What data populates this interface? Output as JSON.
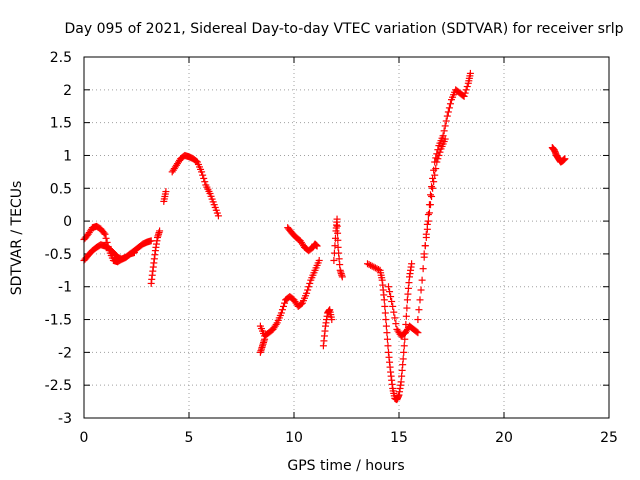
{
  "chart_data": {
    "type": "scatter",
    "title": "Day 095 of 2021, Sidereal Day-to-day VTEC variation (SDTVAR) for receiver srlp",
    "xlabel": "GPS time / hours",
    "ylabel": "SDTVAR / TECUs",
    "xlim": [
      0,
      25
    ],
    "ylim": [
      -3,
      2.5
    ],
    "xticks": [
      0,
      5,
      10,
      15,
      20,
      25
    ],
    "xtick_labels": [
      "0",
      "5",
      "10",
      "15",
      "20",
      "25"
    ],
    "yticks": [
      -3,
      -2.5,
      -2,
      -1.5,
      -1,
      -0.5,
      0,
      0.5,
      1,
      1.5,
      2,
      2.5
    ],
    "ytick_labels": [
      "-3",
      "-2.5",
      "-2",
      "-1.5",
      "-1",
      "-0.5",
      "0",
      "0.5",
      "1",
      "1.5",
      "2",
      "2.5"
    ],
    "grid": true,
    "marker": "+",
    "color": "#ff0000",
    "segments": [
      {
        "x": [
          0.0,
          0.2,
          0.4,
          0.6,
          0.8,
          1.0,
          1.2,
          1.4,
          1.6,
          1.8,
          2.0,
          2.2,
          2.4,
          2.6,
          2.8,
          3.0,
          3.2
        ],
        "y": [
          -0.28,
          -0.2,
          -0.1,
          -0.08,
          -0.12,
          -0.2,
          -0.45,
          -0.6,
          -0.62,
          -0.58,
          -0.55,
          -0.5,
          -0.45,
          -0.4,
          -0.35,
          -0.32,
          -0.3
        ]
      },
      {
        "x": [
          0.0,
          0.2,
          0.4,
          0.6,
          0.8,
          1.0,
          1.2,
          1.4,
          1.6,
          1.8,
          2.0,
          2.2,
          2.4
        ],
        "y": [
          -0.6,
          -0.52,
          -0.45,
          -0.4,
          -0.36,
          -0.38,
          -0.42,
          -0.48,
          -0.55,
          -0.58,
          -0.55,
          -0.5,
          -0.48
        ]
      },
      {
        "x": [
          3.2,
          3.3,
          3.4,
          3.5,
          3.6
        ],
        "y": [
          -0.95,
          -0.7,
          -0.45,
          -0.25,
          -0.15
        ]
      },
      {
        "x": [
          3.8,
          3.9
        ],
        "y": [
          0.3,
          0.45
        ]
      },
      {
        "x": [
          4.2,
          4.4,
          4.6,
          4.8,
          5.0,
          5.2,
          5.4,
          5.6,
          5.8,
          6.0,
          6.2,
          6.4
        ],
        "y": [
          0.75,
          0.85,
          0.95,
          1.0,
          0.98,
          0.95,
          0.9,
          0.75,
          0.55,
          0.42,
          0.25,
          0.08
        ]
      },
      {
        "x": [
          8.4,
          8.6,
          8.8,
          9.0,
          9.2,
          9.4,
          9.6,
          9.8,
          10.0,
          10.2,
          10.4,
          10.6,
          10.8,
          11.0,
          11.2
        ],
        "y": [
          -1.6,
          -1.75,
          -1.7,
          -1.65,
          -1.55,
          -1.4,
          -1.2,
          -1.15,
          -1.2,
          -1.3,
          -1.25,
          -1.1,
          -0.9,
          -0.75,
          -0.6
        ]
      },
      {
        "x": [
          8.4,
          8.5,
          8.6
        ],
        "y": [
          -2.0,
          -1.9,
          -1.8
        ]
      },
      {
        "x": [
          9.7,
          9.9,
          10.1,
          10.3,
          10.5,
          10.7,
          10.9,
          11.0,
          11.1
        ],
        "y": [
          -0.1,
          -0.18,
          -0.25,
          -0.3,
          -0.4,
          -0.45,
          -0.4,
          -0.35,
          -0.38
        ]
      },
      {
        "x": [
          11.4,
          11.5,
          11.6,
          11.7,
          11.8
        ],
        "y": [
          -1.9,
          -1.6,
          -1.4,
          -1.35,
          -1.5
        ]
      },
      {
        "x": [
          11.9,
          12.0,
          12.05,
          12.1,
          12.2,
          12.3
        ],
        "y": [
          -0.6,
          -0.15,
          0.03,
          -0.4,
          -0.75,
          -0.85
        ]
      },
      {
        "x": [
          13.5,
          13.8,
          14.1,
          14.2,
          14.3,
          14.4,
          14.5,
          14.6,
          14.7,
          14.8,
          14.9,
          15.0,
          15.1,
          15.2,
          15.3,
          15.4,
          15.5,
          15.6
        ],
        "y": [
          -0.65,
          -0.7,
          -0.75,
          -0.9,
          -1.2,
          -1.6,
          -2.0,
          -2.3,
          -2.55,
          -2.7,
          -2.72,
          -2.65,
          -2.45,
          -2.1,
          -1.7,
          -1.2,
          -0.85,
          -0.65
        ]
      },
      {
        "x": [
          14.5,
          14.7,
          14.9,
          15.1,
          15.3,
          15.5,
          15.7,
          15.9
        ],
        "y": [
          -1.0,
          -1.3,
          -1.65,
          -1.75,
          -1.7,
          -1.6,
          -1.65,
          -1.7
        ]
      },
      {
        "x": [
          15.9,
          16.1,
          16.3,
          16.5,
          16.7,
          16.9,
          17.1,
          17.3,
          17.5,
          17.7,
          17.9,
          18.1,
          18.3,
          18.4
        ],
        "y": [
          -1.5,
          -0.9,
          -0.2,
          0.4,
          0.9,
          1.15,
          1.3,
          1.6,
          1.85,
          2.0,
          1.95,
          1.9,
          2.1,
          2.25
        ]
      },
      {
        "x": [
          16.2,
          16.4,
          16.6,
          16.8,
          17.0,
          17.2
        ],
        "y": [
          -0.5,
          0.0,
          0.5,
          0.9,
          1.1,
          1.25
        ]
      },
      {
        "x": [
          22.3,
          22.4,
          22.5,
          22.6,
          22.7,
          22.8,
          22.9
        ],
        "y": [
          1.12,
          1.08,
          1.0,
          0.95,
          0.9,
          0.92,
          0.95
        ]
      }
    ]
  }
}
